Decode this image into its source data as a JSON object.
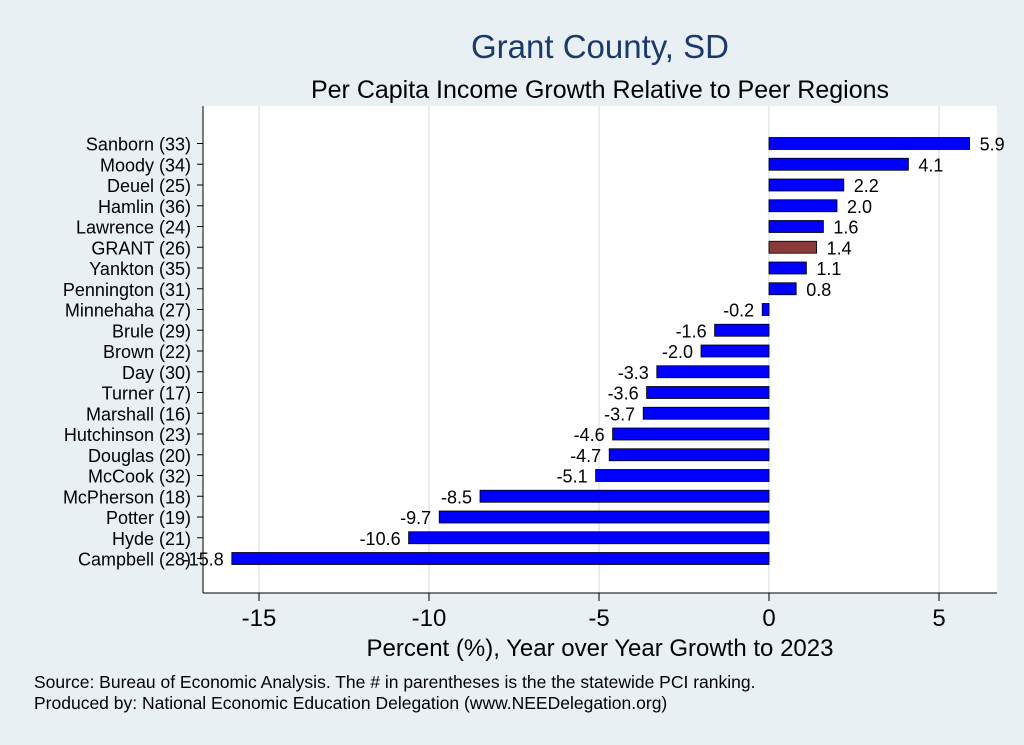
{
  "chart_data": {
    "type": "bar",
    "orientation": "horizontal",
    "title": "Grant County, SD",
    "subtitle": "Per Capita Income Growth Relative to Peer Regions",
    "xlabel": "Percent (%), Year over Year Growth to 2023",
    "ylabel": "",
    "xlim": [
      -16.5,
      6.6
    ],
    "xticks": [
      -15,
      -10,
      -5,
      0,
      5
    ],
    "grid": true,
    "categories": [
      "Sanborn (33)",
      "Moody (34)",
      "Deuel (25)",
      "Hamlin (36)",
      "Lawrence (24)",
      "GRANT (26)",
      "Yankton (35)",
      "Pennington (31)",
      "Minnehaha (27)",
      "Brule (29)",
      "Brown (22)",
      "Day (30)",
      "Turner (17)",
      "Marshall (16)",
      "Hutchinson (23)",
      "Douglas (20)",
      "McCook (32)",
      "McPherson (18)",
      "Potter (19)",
      "Hyde (21)",
      "Campbell (28)"
    ],
    "values": [
      5.9,
      4.1,
      2.2,
      2.0,
      1.6,
      1.4,
      1.1,
      0.8,
      -0.2,
      -1.6,
      -2.0,
      -3.3,
      -3.6,
      -3.7,
      -4.6,
      -4.7,
      -5.1,
      -8.5,
      -9.7,
      -10.6,
      -15.8
    ],
    "value_labels": [
      "5.9",
      "4.1",
      "2.2",
      "2.0",
      "1.6",
      "1.4",
      "1.1",
      "0.8",
      "-0.2",
      "-1.6",
      "-2.0",
      "-3.3",
      "-3.6",
      "-3.7",
      "-4.6",
      "-4.7",
      "-5.1",
      "-8.5",
      "-9.7",
      "-10.6",
      "-15.8"
    ],
    "highlight": "GRANT (26)",
    "colors": {
      "bar": "#0000ff",
      "highlight": "#8b3a3a",
      "plot_bg": "#ffffff",
      "page_bg": "#e9f0f4",
      "title": "#1a3a6b",
      "grid": "#e6eef2"
    }
  },
  "footer": {
    "source": "Source: Bureau of Economic Analysis. The # in parentheses is the the statewide PCI ranking.",
    "produced": "Produced by: National Economic Education Delegation (www.NEEDelegation.org)"
  }
}
